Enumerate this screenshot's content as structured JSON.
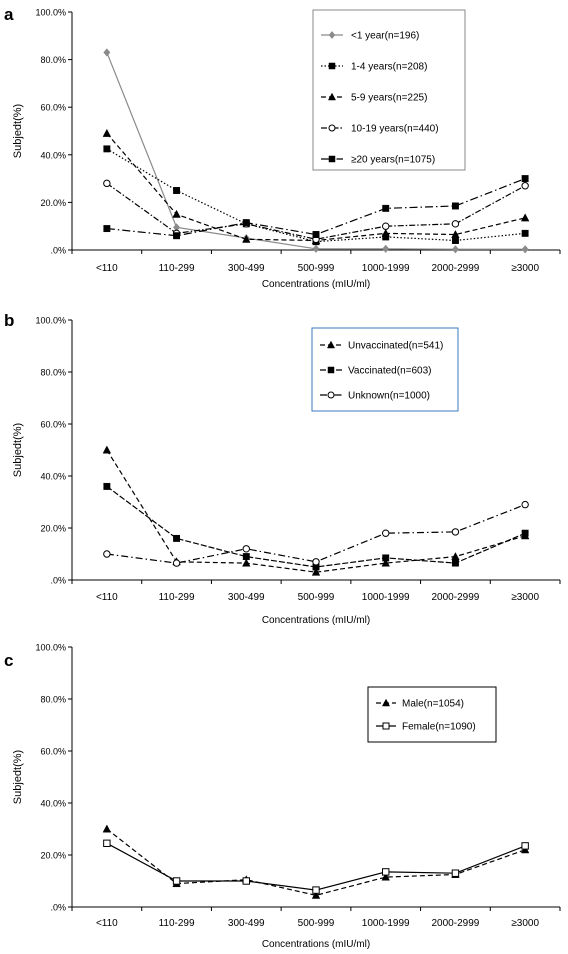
{
  "chart_data": [
    {
      "type": "line",
      "panel_label": "a",
      "categories": [
        "<110",
        "110-299",
        "300-499",
        "500-999",
        "1000-1999",
        "2000-2999",
        "≥3000"
      ],
      "yticks": [
        ".0%",
        "20.0%",
        "40.0%",
        "60.0%",
        "80.0%",
        "100.0%"
      ],
      "ylim": [
        0,
        100
      ],
      "ylabel": "Subjedt(%)",
      "xlabel": "Concentrations (mIU/ml)",
      "legend_position": "top-right",
      "series": [
        {
          "name": "<1 year(n=196)",
          "values": [
            83,
            9.5,
            5,
            0.5,
            0.5,
            0.3,
            0.3
          ],
          "color": "#8a8a8a",
          "dash": "",
          "marker": "diamond"
        },
        {
          "name": "1-4 years(n=208)",
          "values": [
            42.5,
            25,
            11,
            3.5,
            5.5,
            4,
            7
          ],
          "color": "#000000",
          "dash": "1.5,2",
          "marker": "square"
        },
        {
          "name": "5-9 years(n=225)",
          "values": [
            49,
            15,
            4.5,
            4,
            7,
            6.5,
            13.5
          ],
          "color": "#000000",
          "dash": "5,3",
          "marker": "triangle"
        },
        {
          "name": "10-19 years(n=440)",
          "values": [
            28,
            7,
            11,
            4.5,
            10,
            11,
            27
          ],
          "color": "#000000",
          "dash": "6,2,1.5,2",
          "marker": "circle-open"
        },
        {
          "name": "≥20 years(n=1075)",
          "values": [
            9,
            6,
            11.5,
            6.5,
            17.5,
            18.5,
            30
          ],
          "color": "#000000",
          "dash": "8,3,1.5,3",
          "marker": "square"
        }
      ]
    },
    {
      "type": "line",
      "panel_label": "b",
      "categories": [
        "<110",
        "110-299",
        "300-499",
        "500-999",
        "1000-1999",
        "2000-2999",
        "≥3000"
      ],
      "yticks": [
        ".0%",
        "20.0%",
        "40.0%",
        "60.0%",
        "80.0%",
        "100.0%"
      ],
      "ylim": [
        0,
        100
      ],
      "ylabel": "Subjedt(%)",
      "xlabel": "Concentrations (mIU/ml)",
      "legend_position": "top-right",
      "series": [
        {
          "name": "Unvaccinated(n=541)",
          "values": [
            50,
            7,
            6.5,
            3,
            6.5,
            9,
            17
          ],
          "color": "#000000",
          "dash": "5,3",
          "marker": "triangle"
        },
        {
          "name": "Vaccinated(n=603)",
          "values": [
            36,
            16,
            9,
            5,
            8.5,
            6.5,
            18
          ],
          "color": "#000000",
          "dash": "6,2",
          "marker": "square"
        },
        {
          "name": "Unknown(n=1000)",
          "values": [
            10,
            6.5,
            12,
            7,
            18,
            18.5,
            29
          ],
          "color": "#000000",
          "dash": "7,3,1.5,3",
          "marker": "circle-open"
        }
      ]
    },
    {
      "type": "line",
      "panel_label": "c",
      "categories": [
        "<110",
        "110-299",
        "300-499",
        "500-999",
        "1000-1999",
        "2000-2999",
        "≥3000"
      ],
      "yticks": [
        ".0%",
        "20.0%",
        "40.0%",
        "60.0%",
        "80.0%",
        "100.0%"
      ],
      "ylim": [
        0,
        100
      ],
      "ylabel": "Subjedt(%)",
      "xlabel": "Concentrations (mIU/ml)",
      "legend_position": "top-right",
      "series": [
        {
          "name": "Male(n=1054)",
          "values": [
            30,
            9,
            10.5,
            4.5,
            11.5,
            12.5,
            22
          ],
          "color": "#000000",
          "dash": "5,3",
          "marker": "triangle"
        },
        {
          "name": "Female(n=1090)",
          "values": [
            24.5,
            10,
            10,
            6.5,
            13.5,
            13,
            23.5
          ],
          "color": "#000000",
          "dash": "",
          "marker": "square-open"
        }
      ]
    }
  ]
}
